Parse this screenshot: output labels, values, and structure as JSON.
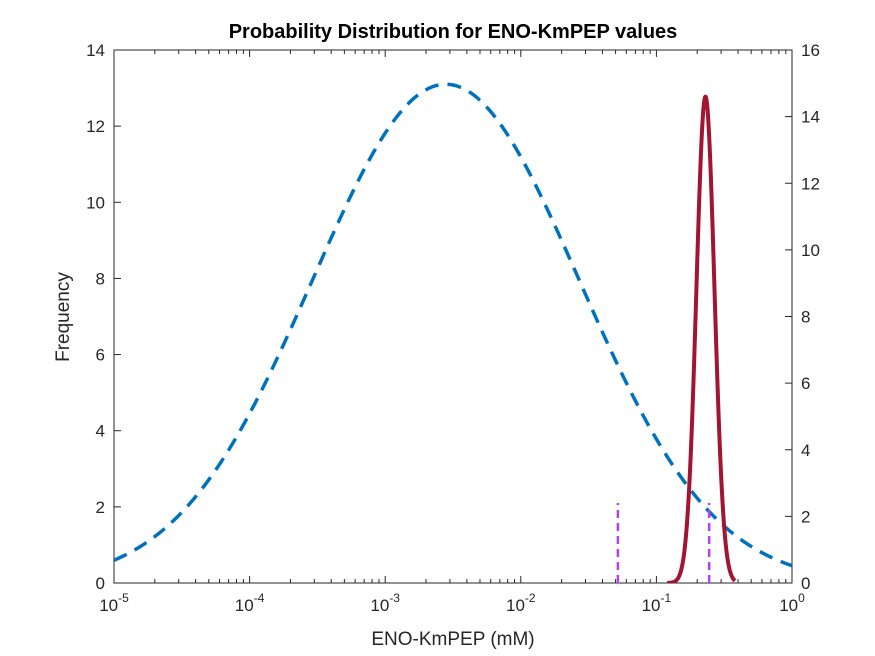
{
  "chart_data": {
    "type": "line",
    "title": "Probability Distribution for ENO-KmPEP values",
    "xlabel": "ENO-KmPEP (mM)",
    "ylabel": "Frequency",
    "xscale": "log",
    "xlim": [
      1e-05,
      1
    ],
    "ylim_left": [
      0,
      14
    ],
    "ylim_right": [
      0,
      16
    ],
    "grid": false,
    "x_ticks": [
      {
        "base": "10",
        "exp": "-5",
        "value": 1e-05
      },
      {
        "base": "10",
        "exp": "-4",
        "value": 0.0001
      },
      {
        "base": "10",
        "exp": "-3",
        "value": 0.001
      },
      {
        "base": "10",
        "exp": "-2",
        "value": 0.01
      },
      {
        "base": "10",
        "exp": "-1",
        "value": 0.1
      },
      {
        "base": "10",
        "exp": "0",
        "value": 1
      }
    ],
    "y_ticks_left": [
      "0",
      "2",
      "4",
      "6",
      "8",
      "10",
      "12",
      "14"
    ],
    "y_ticks_right": [
      "0",
      "2",
      "4",
      "6",
      "8",
      "10",
      "12",
      "14",
      "16"
    ],
    "series": [
      {
        "style": "dashed",
        "color": "#0072BD",
        "axis": "left",
        "shape": "lognormal",
        "peak_x": 0.0028,
        "peak_y": 13.1,
        "sigma_decades": 0.985
      },
      {
        "style": "solid",
        "color": "#A2142F",
        "axis": "right",
        "shape": "lognormal",
        "peak_x": 0.23,
        "peak_y": 14.6,
        "sigma_decades": 0.0665,
        "x_range": [
          0.12,
          0.38
        ]
      }
    ],
    "vertical_markers": [
      {
        "x": 0.052,
        "y_top": 2.1,
        "axis": "left",
        "color": "#B540F5",
        "style": "dashed"
      },
      {
        "x": 0.245,
        "y_top": 2.1,
        "axis": "left",
        "color": "#B540F5",
        "style": "dashed"
      }
    ]
  }
}
